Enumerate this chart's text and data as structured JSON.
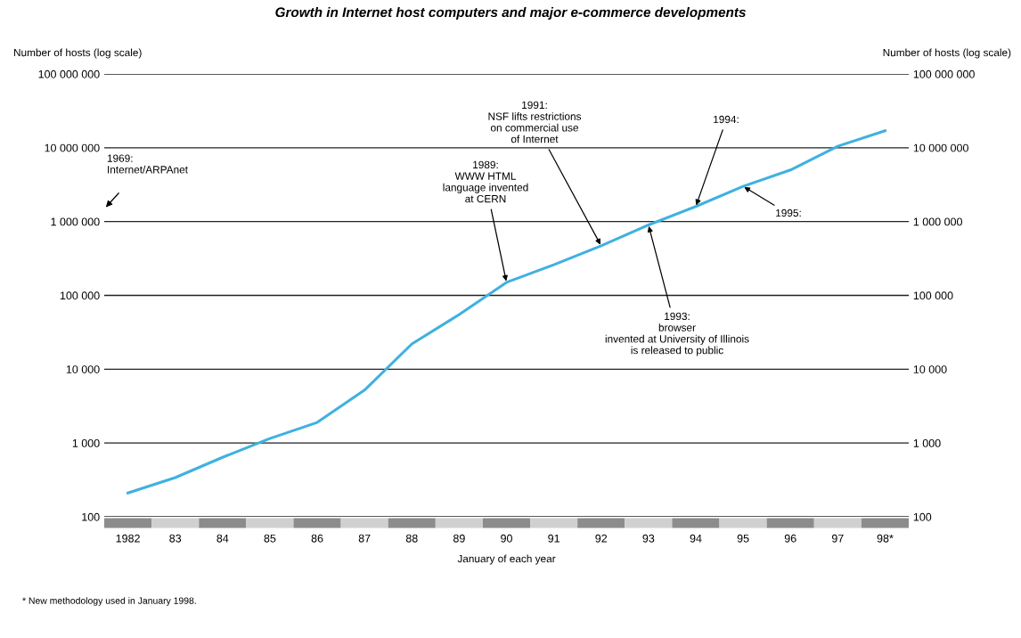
{
  "chart_data": {
    "type": "line",
    "title": "Growth in Internet host computers and major e-commerce developments",
    "ylabel": "Number of hosts (log scale)",
    "y2label": "Number of hosts (log scale)",
    "xlabel": "January of each year",
    "categories": [
      "1982",
      "83",
      "84",
      "85",
      "86",
      "87",
      "88",
      "89",
      "90",
      "91",
      "92",
      "93",
      "94",
      "95",
      "96",
      "97",
      "98*"
    ],
    "series": [
      {
        "color": "#3fb1e0",
        "values": [
          210,
          340,
          640,
          1150,
          1900,
          5200,
          22000,
          55000,
          150000,
          260000,
          470000,
          900000,
          1600000,
          3000000,
          5000000,
          10500000,
          17000000
        ]
      }
    ],
    "log": "y",
    "ylim": [
      100,
      100000000
    ],
    "yticks": [
      {
        "value": 100,
        "label": "100"
      },
      {
        "value": 1000,
        "label": "1 000"
      },
      {
        "value": 10000,
        "label": "10 000"
      },
      {
        "value": 100000,
        "label": "100 000"
      },
      {
        "value": 1000000,
        "label": "1 000 000"
      },
      {
        "value": 10000000,
        "label": "10 000 000"
      },
      {
        "value": 100000000,
        "label": "100 000 000"
      }
    ],
    "grid": "y",
    "marker": "none",
    "line_style": "solid",
    "annotations": [
      "1969:\nInternet/ARPAnet",
      {
        "text": "1989:\nWWW HTML\nlanguage invented\nat CERN",
        "x": "90",
        "y": 150000
      },
      {
        "text": "1991:\nNSF lifts restrictions\non commercial use\nof Internet",
        "x": "92",
        "y": 470000
      },
      {
        "text": "1993:\nbrowser\ninvented at University of Illinois\nis released to public",
        "x": "93",
        "y": 900000
      },
      {
        "text": "1994:",
        "x": "94",
        "y": 1600000
      },
      {
        "text": "1995:",
        "x": "95",
        "y": 3000000
      },
      "* New methodology used in January 1998."
    ]
  }
}
